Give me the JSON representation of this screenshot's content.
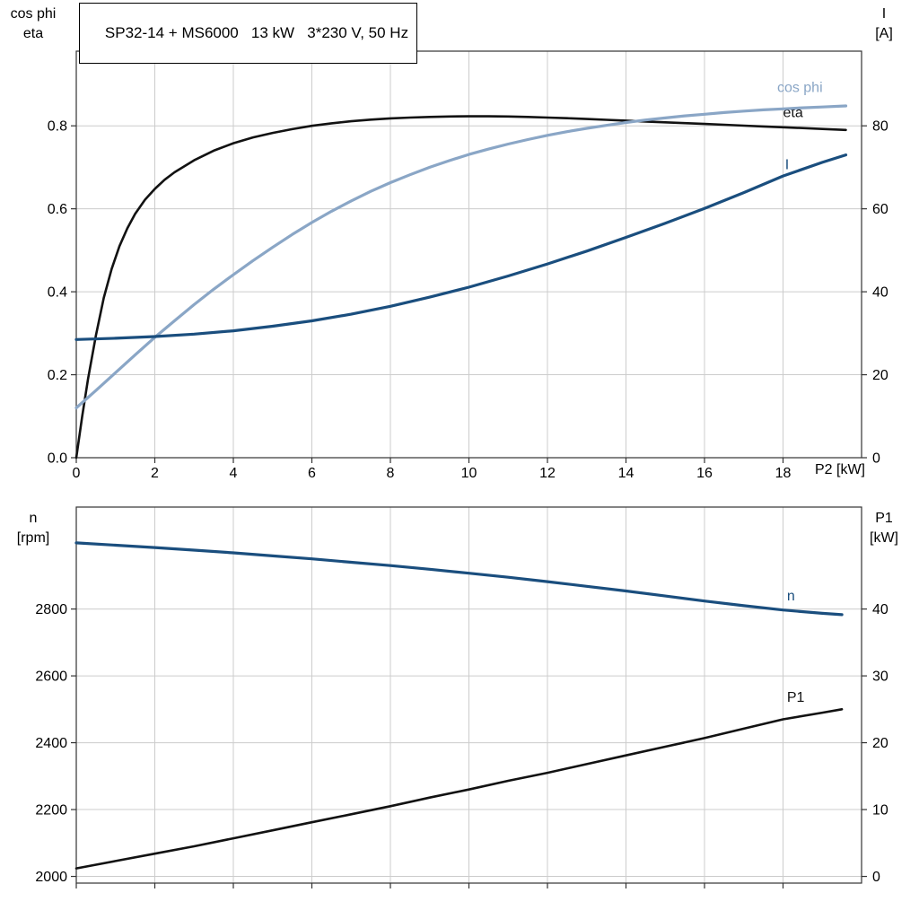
{
  "colors": {
    "grid": "#cccccc",
    "axis": "#333333",
    "black_curve": "#121212",
    "light_blue": "#8aa6c6",
    "dark_blue": "#1a4e7e"
  },
  "chart_data": [
    {
      "type": "line",
      "title": "SP32-14 + MS6000   13 kW   3*230 V, 50 Hz",
      "xlabel": "P2 [kW]",
      "ylabel_left": [
        "cos phi",
        "eta"
      ],
      "ylabel_right": [
        "I",
        "[A]"
      ],
      "grid": true,
      "plot": [
        85,
        57,
        875,
        453
      ],
      "xlim": [
        0,
        20
      ],
      "xticks": {
        "values": [
          0,
          2,
          4,
          6,
          8,
          10,
          12,
          14,
          16,
          18
        ],
        "labels": [
          "0",
          "2",
          "4",
          "6",
          "8",
          "10",
          "12",
          "14",
          "16",
          "18"
        ]
      },
      "ylim_left": [
        0,
        0.98
      ],
      "yticks_left": {
        "values": [
          0.0,
          0.2,
          0.4,
          0.6,
          0.8
        ],
        "labels": [
          "0.0",
          "0.2",
          "0.4",
          "0.6",
          "0.8"
        ]
      },
      "ylim_right": [
        0,
        98
      ],
      "yticks_right": {
        "values": [
          0,
          20,
          40,
          60,
          80
        ],
        "labels": [
          "0",
          "20",
          "40",
          "60",
          "80"
        ]
      },
      "series": [
        {
          "name": "eta",
          "axis": "left",
          "color": "#121212",
          "width": 2.6,
          "label": "eta",
          "label_pos": [
            18.0,
            0.821
          ],
          "points": [
            [
              0,
              0
            ],
            [
              0.15,
              0.1
            ],
            [
              0.3,
              0.19
            ],
            [
              0.5,
              0.295
            ],
            [
              0.7,
              0.385
            ],
            [
              0.9,
              0.455
            ],
            [
              1.1,
              0.51
            ],
            [
              1.3,
              0.553
            ],
            [
              1.5,
              0.588
            ],
            [
              1.75,
              0.622
            ],
            [
              2,
              0.648
            ],
            [
              2.25,
              0.67
            ],
            [
              2.5,
              0.688
            ],
            [
              3,
              0.717
            ],
            [
              3.5,
              0.74
            ],
            [
              4,
              0.758
            ],
            [
              4.5,
              0.772
            ],
            [
              5,
              0.783
            ],
            [
              5.5,
              0.792
            ],
            [
              6,
              0.8
            ],
            [
              6.5,
              0.806
            ],
            [
              7,
              0.811
            ],
            [
              7.5,
              0.815
            ],
            [
              8,
              0.818
            ],
            [
              8.5,
              0.82
            ],
            [
              9,
              0.8215
            ],
            [
              9.5,
              0.8225
            ],
            [
              10,
              0.823
            ],
            [
              10.5,
              0.823
            ],
            [
              11,
              0.8225
            ],
            [
              11.5,
              0.8215
            ],
            [
              12,
              0.82
            ],
            [
              12.5,
              0.8185
            ],
            [
              13,
              0.8165
            ],
            [
              13.5,
              0.8145
            ],
            [
              14,
              0.8125
            ],
            [
              14.5,
              0.8105
            ],
            [
              15,
              0.8085
            ],
            [
              15.5,
              0.8065
            ],
            [
              16,
              0.8045
            ],
            [
              16.5,
              0.8025
            ],
            [
              17,
              0.8005
            ],
            [
              17.5,
              0.7985
            ],
            [
              18,
              0.7965
            ],
            [
              18.5,
              0.7945
            ],
            [
              19,
              0.7925
            ],
            [
              19.6,
              0.79
            ]
          ]
        },
        {
          "name": "cos phi",
          "axis": "left",
          "color": "#8aa6c6",
          "width": 3.2,
          "label": "cos phi",
          "label_pos": [
            17.85,
            0.882
          ],
          "points": [
            [
              0,
              0.12
            ],
            [
              0.5,
              0.162
            ],
            [
              1,
              0.205
            ],
            [
              1.5,
              0.248
            ],
            [
              2,
              0.29
            ],
            [
              2.5,
              0.33
            ],
            [
              3,
              0.369
            ],
            [
              3.5,
              0.406
            ],
            [
              4,
              0.441
            ],
            [
              4.5,
              0.475
            ],
            [
              5,
              0.507
            ],
            [
              5.5,
              0.538
            ],
            [
              6,
              0.567
            ],
            [
              6.5,
              0.594
            ],
            [
              7,
              0.619
            ],
            [
              7.5,
              0.642
            ],
            [
              8,
              0.663
            ],
            [
              8.5,
              0.682
            ],
            [
              9,
              0.7
            ],
            [
              9.5,
              0.716
            ],
            [
              10,
              0.731
            ],
            [
              10.5,
              0.744
            ],
            [
              11,
              0.756
            ],
            [
              11.5,
              0.767
            ],
            [
              12,
              0.777
            ],
            [
              12.5,
              0.786
            ],
            [
              13,
              0.794
            ],
            [
              13.5,
              0.801
            ],
            [
              14,
              0.808
            ],
            [
              14.5,
              0.814
            ],
            [
              15,
              0.819
            ],
            [
              15.5,
              0.824
            ],
            [
              16,
              0.828
            ],
            [
              16.5,
              0.832
            ],
            [
              17,
              0.8355
            ],
            [
              17.5,
              0.8385
            ],
            [
              18,
              0.841
            ],
            [
              18.5,
              0.8435
            ],
            [
              19,
              0.8455
            ],
            [
              19.6,
              0.848
            ]
          ]
        },
        {
          "name": "I",
          "axis": "right",
          "color": "#1a4e7e",
          "width": 3.2,
          "label": "I",
          "label_pos": [
            18.05,
            69.5
          ],
          "points": [
            [
              0,
              28.5
            ],
            [
              1,
              28.8
            ],
            [
              2,
              29.2
            ],
            [
              3,
              29.8
            ],
            [
              4,
              30.6
            ],
            [
              5,
              31.7
            ],
            [
              6,
              33.0
            ],
            [
              7,
              34.6
            ],
            [
              8,
              36.5
            ],
            [
              9,
              38.7
            ],
            [
              10,
              41.1
            ],
            [
              11,
              43.8
            ],
            [
              12,
              46.7
            ],
            [
              13,
              49.8
            ],
            [
              14,
              53.1
            ],
            [
              15,
              56.5
            ],
            [
              16,
              60.1
            ],
            [
              17,
              63.9
            ],
            [
              18,
              67.9
            ],
            [
              19,
              71.2
            ],
            [
              19.6,
              73.0
            ]
          ]
        }
      ]
    },
    {
      "type": "line",
      "title": "",
      "xlabel": "",
      "ylabel_left": [
        "n",
        "[rpm]"
      ],
      "ylabel_right": [
        "P1",
        "[kW]"
      ],
      "grid": true,
      "plot": [
        85,
        565,
        875,
        419
      ],
      "xlim": [
        0,
        20
      ],
      "xticks": {
        "values": [
          0,
          2,
          4,
          6,
          8,
          10,
          12,
          14,
          16,
          18
        ],
        "labels": null
      },
      "ylim_left": [
        1980,
        3105
      ],
      "yticks_left": {
        "values": [
          2000,
          2200,
          2400,
          2600,
          2800
        ],
        "labels": [
          "2000",
          "2200",
          "2400",
          "2600",
          "2800"
        ]
      },
      "ylim_right": [
        -1,
        55.25
      ],
      "yticks_right": {
        "values": [
          0,
          10,
          20,
          30,
          40
        ],
        "labels": [
          "0",
          "10",
          "20",
          "30",
          "40"
        ]
      },
      "series": [
        {
          "name": "n",
          "axis": "left",
          "color": "#1a4e7e",
          "width": 3.2,
          "label": "n",
          "label_pos": [
            18.1,
            2826
          ],
          "points": [
            [
              0,
              2998
            ],
            [
              1,
              2991
            ],
            [
              2,
              2984
            ],
            [
              3,
              2976
            ],
            [
              4,
              2968
            ],
            [
              5,
              2959
            ],
            [
              6,
              2950
            ],
            [
              7,
              2940
            ],
            [
              8,
              2930
            ],
            [
              9,
              2919
            ],
            [
              10,
              2907
            ],
            [
              11,
              2895
            ],
            [
              12,
              2882
            ],
            [
              13,
              2868
            ],
            [
              14,
              2854
            ],
            [
              15,
              2839
            ],
            [
              16,
              2824
            ],
            [
              17,
              2810
            ],
            [
              18,
              2797
            ],
            [
              19,
              2787
            ],
            [
              19.5,
              2783
            ]
          ]
        },
        {
          "name": "P1",
          "axis": "right",
          "color": "#121212",
          "width": 2.6,
          "label": "P1",
          "label_pos": [
            18.1,
            26.1
          ],
          "points": [
            [
              0,
              1.2
            ],
            [
              1,
              2.3
            ],
            [
              2,
              3.4
            ],
            [
              3,
              4.5
            ],
            [
              4,
              5.7
            ],
            [
              5,
              6.9
            ],
            [
              6,
              8.1
            ],
            [
              7,
              9.3
            ],
            [
              8,
              10.5
            ],
            [
              9,
              11.8
            ],
            [
              10,
              13.0
            ],
            [
              11,
              14.3
            ],
            [
              12,
              15.5
            ],
            [
              13,
              16.8
            ],
            [
              14,
              18.1
            ],
            [
              15,
              19.4
            ],
            [
              16,
              20.7
            ],
            [
              17,
              22.1
            ],
            [
              18,
              23.5
            ],
            [
              19,
              24.5
            ],
            [
              19.5,
              25.0
            ]
          ]
        }
      ]
    }
  ]
}
